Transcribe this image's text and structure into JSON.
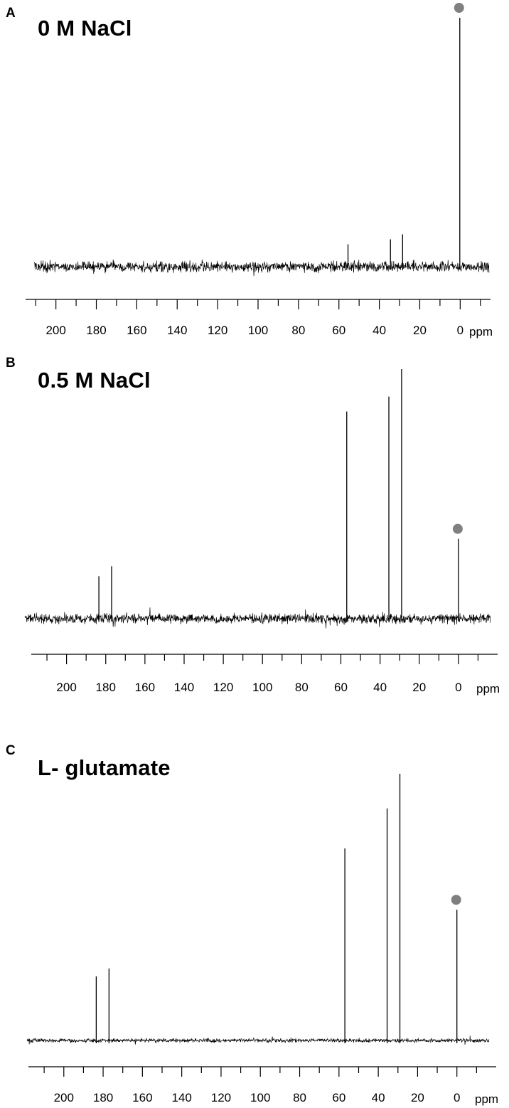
{
  "chart_data": [
    {
      "type": "line",
      "panel_label": "A",
      "title": "0 M NaCl",
      "xlabel": "ppm",
      "x_reversed": true,
      "xlim": [
        215,
        -15
      ],
      "tick_labels": [
        "200",
        "180",
        "160",
        "140",
        "120",
        "100",
        "80",
        "60",
        "40",
        "20",
        "0"
      ],
      "tick_values": [
        200,
        180,
        160,
        140,
        120,
        100,
        80,
        60,
        40,
        20,
        0
      ],
      "noise_level": "high",
      "grid": false,
      "peaks": [
        {
          "ppm": 0.2,
          "height": 1.0,
          "marker": "circle"
        },
        {
          "ppm": 55.5,
          "height": 0.09
        },
        {
          "ppm": 34.5,
          "height": 0.11
        },
        {
          "ppm": 28.5,
          "height": 0.13
        }
      ]
    },
    {
      "type": "line",
      "panel_label": "B",
      "title": "0.5 M NaCl",
      "xlabel": "ppm",
      "x_reversed": true,
      "xlim": [
        218,
        -20
      ],
      "tick_labels": [
        "200",
        "180",
        "160",
        "140",
        "120",
        "100",
        "80",
        "60",
        "40",
        "20",
        "0"
      ],
      "tick_values": [
        200,
        180,
        160,
        140,
        120,
        100,
        80,
        60,
        40,
        20,
        0
      ],
      "noise_level": "high",
      "grid": false,
      "peaks": [
        {
          "ppm": 183.5,
          "height": 0.17
        },
        {
          "ppm": 177.0,
          "height": 0.21
        },
        {
          "ppm": 57.0,
          "height": 0.83
        },
        {
          "ppm": 35.5,
          "height": 0.89
        },
        {
          "ppm": 29.0,
          "height": 1.0
        },
        {
          "ppm": 0.0,
          "height": 0.32,
          "marker": "circle"
        }
      ]
    },
    {
      "type": "line",
      "panel_label": "C",
      "title": "L- glutamate",
      "xlabel": "ppm",
      "x_reversed": true,
      "xlim": [
        218,
        -20
      ],
      "tick_labels": [
        "200",
        "180",
        "160",
        "140",
        "120",
        "100",
        "80",
        "60",
        "40",
        "20",
        "0"
      ],
      "tick_values": [
        200,
        180,
        160,
        140,
        120,
        100,
        80,
        60,
        40,
        20,
        0
      ],
      "noise_level": "low",
      "grid": false,
      "peaks": [
        {
          "ppm": 183.5,
          "height": 0.24
        },
        {
          "ppm": 177.0,
          "height": 0.27
        },
        {
          "ppm": 57.0,
          "height": 0.72
        },
        {
          "ppm": 35.5,
          "height": 0.87
        },
        {
          "ppm": 29.0,
          "height": 1.0
        },
        {
          "ppm": 0.0,
          "height": 0.49,
          "marker": "circle"
        }
      ]
    }
  ]
}
